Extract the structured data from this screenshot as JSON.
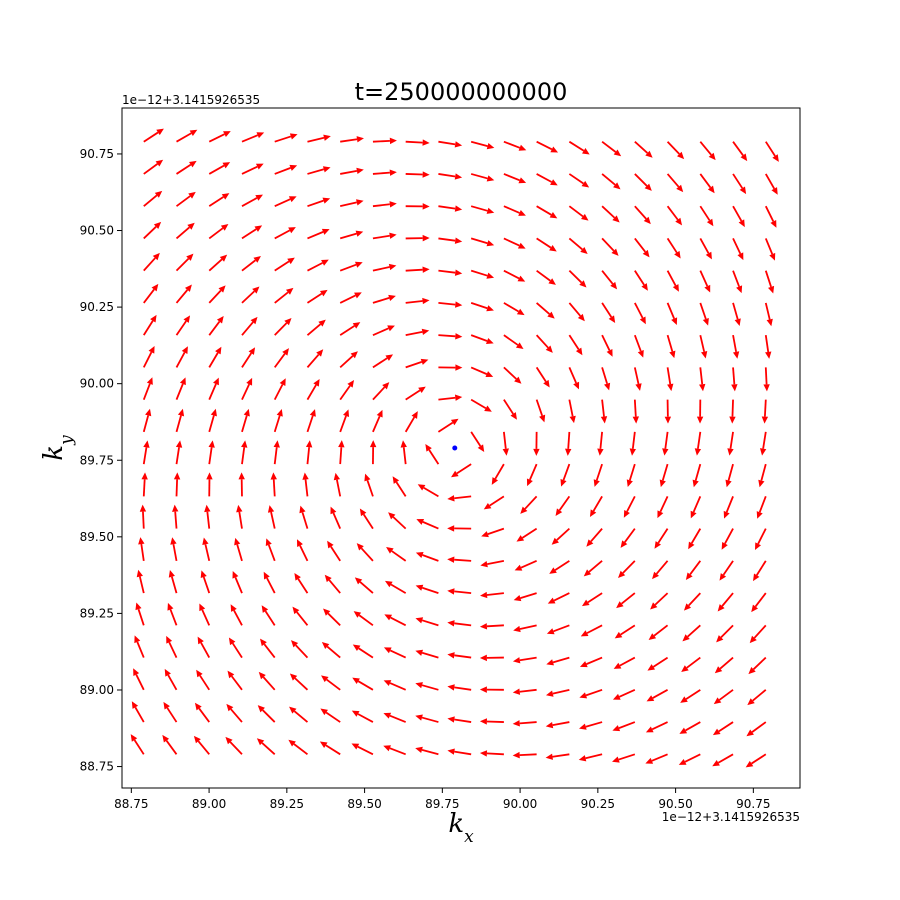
{
  "chart_data": {
    "type": "quiver",
    "title": "t=250000000000",
    "xlabel": "k_x",
    "ylabel": "k_y",
    "x_offset_label": "1e−12+3.1415926535",
    "y_offset_label": "1e−12+3.1415926535",
    "xlim": [
      88.72,
      90.9
    ],
    "ylim": [
      88.68,
      90.9
    ],
    "x_ticks": [
      88.75,
      89.0,
      89.25,
      89.5,
      89.75,
      90.0,
      90.25,
      90.5,
      90.75
    ],
    "x_tick_labels": [
      "88.75",
      "89.00",
      "89.25",
      "89.50",
      "89.75",
      "90.00",
      "90.25",
      "90.50",
      "90.75"
    ],
    "y_ticks": [
      88.75,
      89.0,
      89.25,
      89.5,
      89.75,
      90.0,
      90.25,
      90.5,
      90.75
    ],
    "y_tick_labels": [
      "88.75",
      "89.00",
      "89.25",
      "89.50",
      "89.75",
      "90.00",
      "90.25",
      "90.50",
      "90.75"
    ],
    "grid": false,
    "arrow_color": "#ff0000",
    "center_point": {
      "x": 89.79,
      "y": 89.79,
      "color": "#0000ff"
    },
    "vector_field": {
      "x_start": 88.79,
      "x_end": 90.79,
      "y_start": 88.79,
      "y_end": 90.79,
      "n": 20,
      "center": [
        89.79,
        89.79
      ],
      "rotation_deg": 78
    }
  }
}
